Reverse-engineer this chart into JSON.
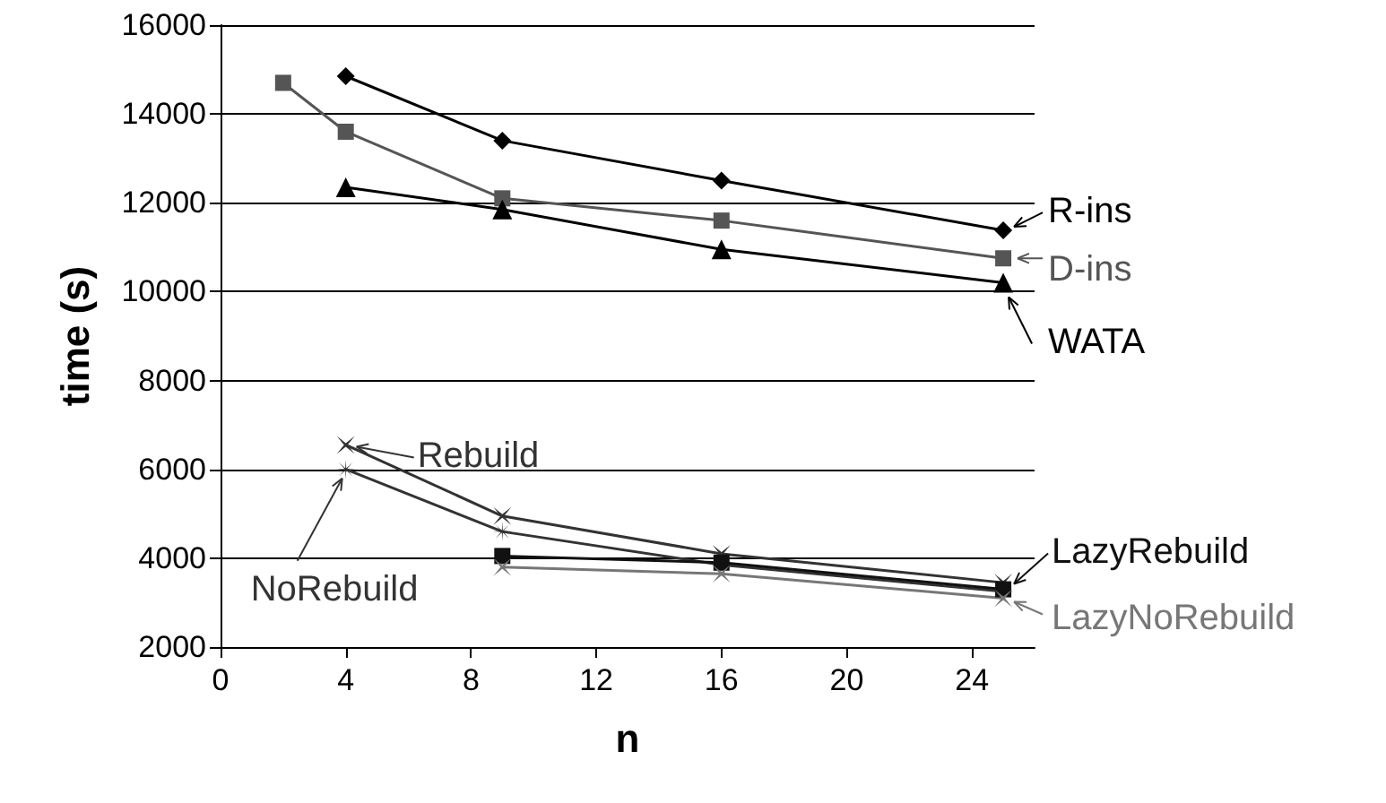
{
  "chart_data": {
    "type": "line",
    "xlabel": "n",
    "ylabel": "time (s)",
    "xlim": [
      0,
      26
    ],
    "xticks": [
      0,
      4,
      8,
      12,
      16,
      20,
      24
    ],
    "ylim": [
      2000,
      16000
    ],
    "yticks": [
      2000,
      4000,
      6000,
      8000,
      10000,
      12000,
      14000,
      16000
    ],
    "grid": "y",
    "legend": "right",
    "line_style": "solid",
    "series": [
      {
        "name": "R-ins",
        "color": "#000000",
        "marker": "diamond",
        "x": [
          4,
          9,
          16,
          25
        ],
        "values": [
          14850,
          13400,
          12500,
          11380
        ]
      },
      {
        "name": "D-ins",
        "color": "#555555",
        "marker": "square",
        "x": [
          2,
          4,
          9,
          16,
          25
        ],
        "values": [
          14700,
          13600,
          12100,
          11600,
          10750
        ]
      },
      {
        "name": "WATA",
        "color": "#000000",
        "marker": "triangle",
        "x": [
          4,
          9,
          16,
          25
        ],
        "values": [
          12350,
          11850,
          10950,
          10200
        ]
      },
      {
        "name": "Rebuild",
        "color": "#333333",
        "marker": "cross",
        "x": [
          4,
          9,
          16,
          25
        ],
        "values": [
          6550,
          4950,
          4100,
          3450
        ]
      },
      {
        "name": "NoRebuild",
        "color": "#333333",
        "marker": "star",
        "x": [
          4,
          9,
          16,
          25
        ],
        "values": [
          6000,
          4600,
          3850,
          3250
        ]
      },
      {
        "name": "LazyRebuild",
        "color": "#111111",
        "marker": "square",
        "x": [
          9,
          16,
          25
        ],
        "values": [
          4050,
          3900,
          3300
        ]
      },
      {
        "name": "LazyNoRebuild",
        "color": "#777777",
        "marker": "cross",
        "x": [
          9,
          16,
          25
        ],
        "values": [
          3800,
          3650,
          3100
        ]
      }
    ]
  }
}
